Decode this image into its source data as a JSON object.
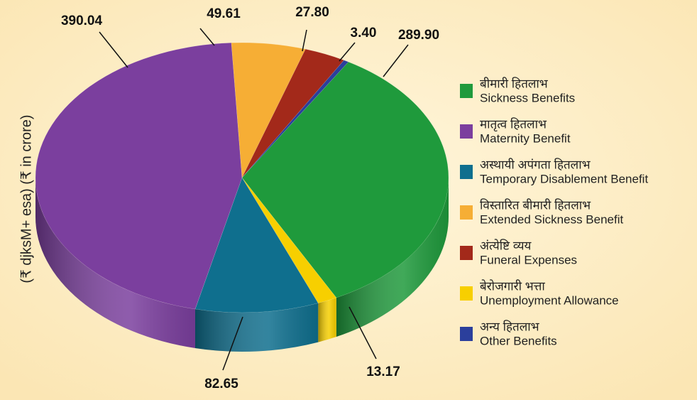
{
  "chart_data": {
    "type": "pie3d",
    "ylabel": "(₹ djksM+ esa) (₹ in crore)",
    "categories": [
      "Sickness Benefits",
      "Maternity Benefit",
      "Temporary Disablement Benefit",
      "Extended Sickness Benefit",
      "Funeral Expenses",
      "Unemployment Allowance",
      "Other Benefits"
    ],
    "categories_hindi": [
      "बीमारी हितलाभ",
      "मातृत्व हितलाभ",
      "अस्थायी अपंगता हितलाभ",
      "विस्तारित बीमारी हितलाभ",
      "अंत्येष्टि व्यय",
      "बेरोजगारी भत्ता",
      "अन्य हितलाभ"
    ],
    "values": [
      289.9,
      390.04,
      82.65,
      49.61,
      27.8,
      13.17,
      3.4
    ],
    "value_labels": [
      "289.90",
      "390.04",
      "82.65",
      "49.61",
      "27.80",
      "13.17",
      "3.40"
    ],
    "colors": [
      "#1f9a3c",
      "#7b3f9e",
      "#0f6f8e",
      "#f6ae35",
      "#a3291a",
      "#f7cf00",
      "#2b3f9c"
    ]
  }
}
